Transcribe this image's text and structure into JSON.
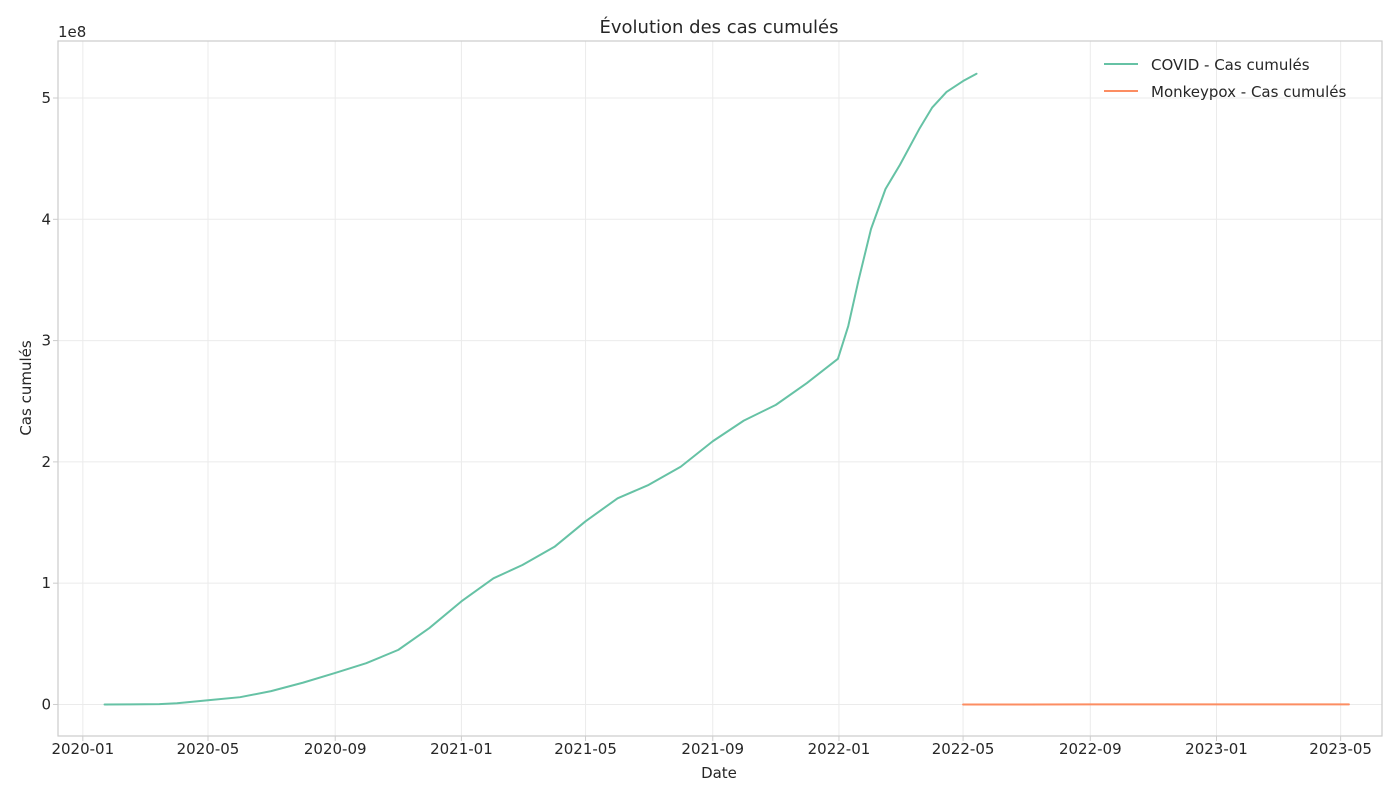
{
  "chart_data": {
    "type": "line",
    "title": "Évolution des cas cumulés",
    "xlabel": "Date",
    "ylabel": "Cas cumulés",
    "y_offset_text": "1e8",
    "x_axis": {
      "range": [
        "2019-12-08",
        "2023-06-10"
      ],
      "ticks": [
        {
          "date": "2020-01-01",
          "label": "2020-01"
        },
        {
          "date": "2020-05-01",
          "label": "2020-05"
        },
        {
          "date": "2020-09-01",
          "label": "2020-09"
        },
        {
          "date": "2021-01-01",
          "label": "2021-01"
        },
        {
          "date": "2021-05-01",
          "label": "2021-05"
        },
        {
          "date": "2021-09-01",
          "label": "2021-09"
        },
        {
          "date": "2022-01-01",
          "label": "2022-01"
        },
        {
          "date": "2022-05-01",
          "label": "2022-05"
        },
        {
          "date": "2022-09-01",
          "label": "2022-09"
        },
        {
          "date": "2023-01-01",
          "label": "2023-01"
        },
        {
          "date": "2023-05-01",
          "label": "2023-05"
        }
      ]
    },
    "y_axis": {
      "range": [
        -26000000,
        547000000
      ],
      "ticks": [
        {
          "value": 0,
          "label": "0"
        },
        {
          "value": 100000000,
          "label": "1"
        },
        {
          "value": 200000000,
          "label": "2"
        },
        {
          "value": 300000000,
          "label": "3"
        },
        {
          "value": 400000000,
          "label": "4"
        },
        {
          "value": 500000000,
          "label": "5"
        }
      ]
    },
    "grid": true,
    "legend_position": "top-right",
    "series": [
      {
        "name": "COVID - Cas cumulés",
        "color": "#66c2a5",
        "points": [
          [
            "2020-01-22",
            0
          ],
          [
            "2020-02-15",
            100000
          ],
          [
            "2020-03-15",
            300000
          ],
          [
            "2020-04-01",
            1000000
          ],
          [
            "2020-05-01",
            3500000
          ],
          [
            "2020-06-01",
            6000000
          ],
          [
            "2020-07-01",
            11000000
          ],
          [
            "2020-08-01",
            18000000
          ],
          [
            "2020-09-01",
            26000000
          ],
          [
            "2020-10-01",
            34000000
          ],
          [
            "2020-11-01",
            45000000
          ],
          [
            "2020-12-01",
            63000000
          ],
          [
            "2021-01-01",
            85000000
          ],
          [
            "2021-02-01",
            104000000
          ],
          [
            "2021-03-01",
            115000000
          ],
          [
            "2021-04-01",
            130000000
          ],
          [
            "2021-05-01",
            151000000
          ],
          [
            "2021-06-01",
            170000000
          ],
          [
            "2021-07-01",
            181000000
          ],
          [
            "2021-08-01",
            196000000
          ],
          [
            "2021-09-01",
            217000000
          ],
          [
            "2021-10-01",
            234000000
          ],
          [
            "2021-11-01",
            247000000
          ],
          [
            "2021-12-01",
            265000000
          ],
          [
            "2021-12-31",
            285000000
          ],
          [
            "2022-01-10",
            312000000
          ],
          [
            "2022-01-20",
            350000000
          ],
          [
            "2022-02-01",
            392000000
          ],
          [
            "2022-02-15",
            425000000
          ],
          [
            "2022-03-01",
            445000000
          ],
          [
            "2022-03-20",
            475000000
          ],
          [
            "2022-04-01",
            492000000
          ],
          [
            "2022-04-15",
            505000000
          ],
          [
            "2022-05-01",
            514000000
          ],
          [
            "2022-05-14",
            520000000
          ]
        ]
      },
      {
        "name": "Monkeypox - Cas cumulés",
        "color": "#fc8d62",
        "points": [
          [
            "2022-05-01",
            0
          ],
          [
            "2022-07-01",
            20000
          ],
          [
            "2022-09-01",
            55000
          ],
          [
            "2022-11-01",
            75000
          ],
          [
            "2023-01-01",
            84000
          ],
          [
            "2023-03-01",
            86000
          ],
          [
            "2023-05-09",
            87000
          ]
        ]
      }
    ]
  }
}
